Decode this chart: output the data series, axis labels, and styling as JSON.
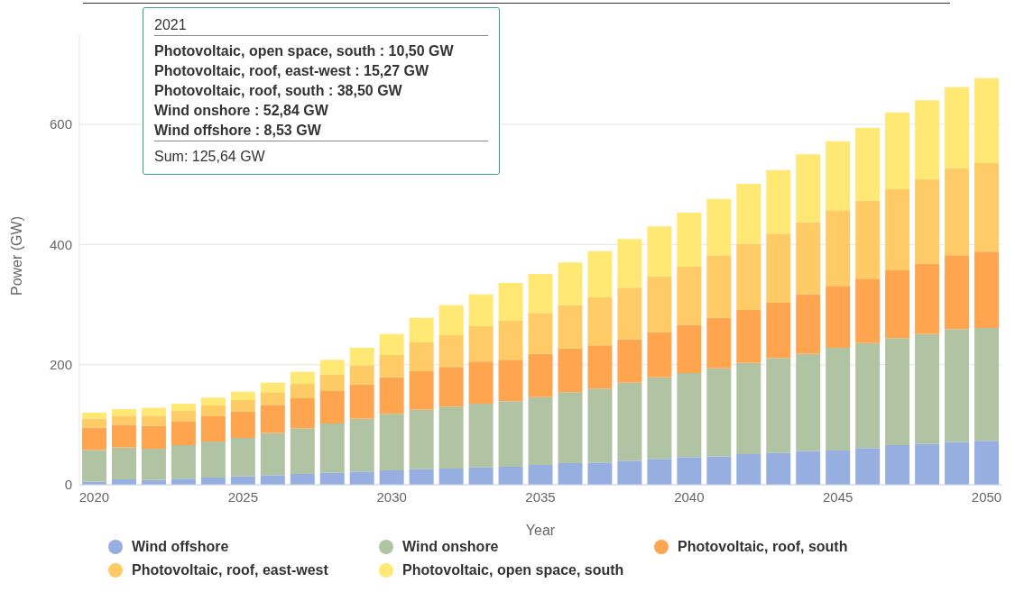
{
  "chart_data": {
    "type": "bar",
    "stacked": true,
    "xlabel": "Year",
    "ylabel": "Power (GW)",
    "x": [
      2020,
      2021,
      2022,
      2023,
      2024,
      2025,
      2026,
      2027,
      2028,
      2029,
      2030,
      2031,
      2032,
      2033,
      2034,
      2035,
      2036,
      2037,
      2038,
      2039,
      2040,
      2041,
      2042,
      2043,
      2044,
      2045,
      2046,
      2047,
      2048,
      2049,
      2050
    ],
    "xlim": [
      2019.5,
      2050.5
    ],
    "xticks": [
      2020,
      2025,
      2030,
      2035,
      2040,
      2045,
      2050
    ],
    "ylim": [
      0,
      750
    ],
    "yticks": [
      0,
      200,
      400,
      600
    ],
    "grid": "y",
    "legend": "bottom",
    "series": [
      {
        "name": "Wind offshore",
        "color": "#97afe0",
        "values": [
          5,
          9,
          8,
          10,
          12,
          14,
          16,
          18,
          20,
          22,
          24,
          26,
          27,
          29,
          30,
          33,
          36,
          37,
          40,
          43,
          46,
          47,
          51,
          53,
          56,
          57,
          61,
          66,
          68,
          71,
          73
        ]
      },
      {
        "name": "Wind onshore",
        "color": "#b0c4a4",
        "values": [
          53,
          53,
          52,
          56,
          60,
          64,
          70,
          76,
          82,
          88,
          94,
          99,
          103,
          106,
          109,
          113,
          118,
          123,
          130,
          136,
          140,
          147,
          152,
          158,
          162,
          171,
          175,
          178,
          183,
          188,
          188
        ]
      },
      {
        "name": "Photovoltaic, roof, south",
        "color": "#ffa550",
        "values": [
          37,
          38,
          38,
          40,
          42,
          44,
          47,
          50,
          54,
          57,
          61,
          64,
          66,
          70,
          69,
          72,
          73,
          72,
          72,
          75,
          80,
          84,
          88,
          92,
          99,
          103,
          107,
          113,
          117,
          123,
          127
        ]
      },
      {
        "name": "Photovoltaic, roof, east-west",
        "color": "#ffcb66",
        "values": [
          15,
          15,
          17,
          17,
          18,
          19,
          21,
          24,
          28,
          32,
          37,
          48,
          53,
          59,
          65,
          68,
          72,
          80,
          86,
          93,
          97,
          104,
          110,
          115,
          120,
          126,
          130,
          135,
          141,
          145,
          148
        ]
      },
      {
        "name": "Photovoltaic, open space, south",
        "color": "#ffe873",
        "values": [
          10,
          11,
          13,
          12,
          13,
          14,
          16,
          20,
          24,
          29,
          35,
          41,
          50,
          53,
          63,
          65,
          71,
          77,
          81,
          83,
          90,
          94,
          100,
          106,
          113,
          115,
          121,
          128,
          131,
          135,
          141
        ]
      }
    ],
    "annotations": [
      "2021",
      "Photovoltaic, open space, south : 10,50 GW",
      "Photovoltaic, roof, east-west : 15,27 GW",
      "Photovoltaic, roof, south : 38,50 GW",
      "Wind onshore : 52,84 GW",
      "Wind offshore : 8,53 GW",
      "Sum: 125,64 GW"
    ]
  }
}
